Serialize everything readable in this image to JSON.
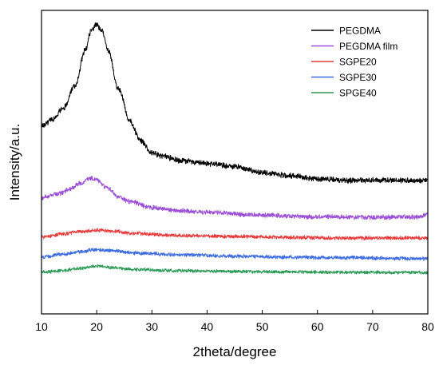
{
  "chart_data": {
    "type": "line",
    "title": "",
    "xlabel": "2theta/degree",
    "ylabel": "Intensity/a.u.",
    "xlim": [
      10,
      80
    ],
    "xticks": [
      10,
      20,
      30,
      40,
      50,
      60,
      70,
      80
    ],
    "yticks_shown": false,
    "grid": false,
    "legend_position": "top-right",
    "series": [
      {
        "name": "PEGDMA",
        "color": "#000000",
        "noise": 3,
        "points": [
          [
            10,
            0.62
          ],
          [
            12,
            0.64
          ],
          [
            14,
            0.68
          ],
          [
            16,
            0.75
          ],
          [
            18,
            0.87
          ],
          [
            19,
            0.935
          ],
          [
            20,
            0.955
          ],
          [
            21,
            0.93
          ],
          [
            22,
            0.87
          ],
          [
            24,
            0.74
          ],
          [
            26,
            0.635
          ],
          [
            28,
            0.57
          ],
          [
            30,
            0.53
          ],
          [
            32,
            0.52
          ],
          [
            35,
            0.505
          ],
          [
            40,
            0.495
          ],
          [
            45,
            0.485
          ],
          [
            50,
            0.465
          ],
          [
            55,
            0.455
          ],
          [
            60,
            0.445
          ],
          [
            65,
            0.44
          ],
          [
            70,
            0.44
          ],
          [
            75,
            0.44
          ],
          [
            80,
            0.44
          ]
        ]
      },
      {
        "name": "PEGDMA film",
        "color": "#9b4fd6",
        "noise": 2.5,
        "points": [
          [
            10,
            0.383
          ],
          [
            13,
            0.395
          ],
          [
            15,
            0.41
          ],
          [
            17,
            0.43
          ],
          [
            19,
            0.448
          ],
          [
            20,
            0.44
          ],
          [
            22,
            0.415
          ],
          [
            24,
            0.385
          ],
          [
            26,
            0.37
          ],
          [
            30,
            0.35
          ],
          [
            35,
            0.34
          ],
          [
            40,
            0.335
          ],
          [
            50,
            0.325
          ],
          [
            60,
            0.32
          ],
          [
            70,
            0.318
          ],
          [
            78,
            0.32
          ],
          [
            80,
            0.326
          ]
        ]
      },
      {
        "name": "SGPE20",
        "color": "#e83a3a",
        "noise": 2,
        "points": [
          [
            10,
            0.254
          ],
          [
            14,
            0.263
          ],
          [
            17,
            0.272
          ],
          [
            20,
            0.276
          ],
          [
            23,
            0.272
          ],
          [
            27,
            0.265
          ],
          [
            35,
            0.258
          ],
          [
            45,
            0.255
          ],
          [
            55,
            0.252
          ],
          [
            65,
            0.25
          ],
          [
            80,
            0.25
          ]
        ]
      },
      {
        "name": "SGPE30",
        "color": "#3d6be0",
        "noise": 2,
        "points": [
          [
            10,
            0.188
          ],
          [
            14,
            0.197
          ],
          [
            17,
            0.205
          ],
          [
            20,
            0.212
          ],
          [
            23,
            0.208
          ],
          [
            27,
            0.2
          ],
          [
            35,
            0.195
          ],
          [
            45,
            0.19
          ],
          [
            55,
            0.187
          ],
          [
            65,
            0.185
          ],
          [
            80,
            0.182
          ]
        ]
      },
      {
        "name": "SPGE40",
        "color": "#2a9a55",
        "noise": 1.8,
        "points": [
          [
            10,
            0.138
          ],
          [
            14,
            0.143
          ],
          [
            17,
            0.15
          ],
          [
            20,
            0.157
          ],
          [
            23,
            0.153
          ],
          [
            27,
            0.146
          ],
          [
            35,
            0.142
          ],
          [
            45,
            0.14
          ],
          [
            55,
            0.138
          ],
          [
            65,
            0.137
          ],
          [
            80,
            0.136
          ]
        ]
      }
    ]
  }
}
